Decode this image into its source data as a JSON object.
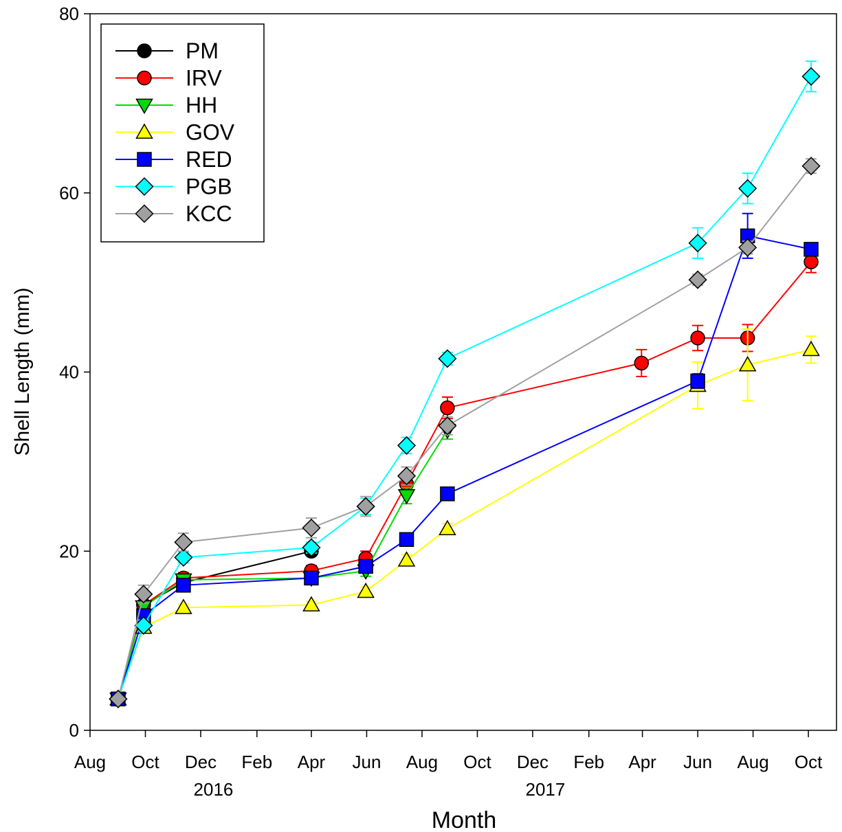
{
  "chart_data": {
    "type": "line",
    "title": "",
    "xlabel": "Month",
    "ylabel": "Shell Length (mm)",
    "x_unit": "month",
    "xlim": [
      "2015-08-01",
      "2017-11-01"
    ],
    "ylim": [
      0,
      80
    ],
    "y_ticks": [
      0,
      20,
      40,
      60,
      80
    ],
    "x_tick_dates": [
      "2015-08-01",
      "2015-10-01",
      "2015-12-01",
      "2016-02-01",
      "2016-04-01",
      "2016-06-01",
      "2016-08-01",
      "2016-10-01",
      "2016-12-01",
      "2017-02-01",
      "2017-04-01",
      "2017-06-01",
      "2017-08-01",
      "2017-10-01"
    ],
    "x_tick_labels": [
      "Aug",
      "Oct",
      "Dec",
      "Feb",
      "Apr",
      "Jun",
      "Aug",
      "Oct",
      "Dec",
      "Feb",
      "Apr",
      "Jun",
      "Aug",
      "Oct"
    ],
    "year_labels": [
      {
        "text": "2016",
        "date": "2015-12-15"
      },
      {
        "text": "2017",
        "date": "2016-12-15"
      }
    ],
    "grid": false,
    "legend_position": "top-left",
    "series": [
      {
        "name": "PM",
        "color": "#000000",
        "marker": "circle",
        "points": [
          {
            "x": "2015-09-01",
            "y": 3.5
          },
          {
            "x": "2015-09-29",
            "y": 14.0
          },
          {
            "x": "2015-11-12",
            "y": 16.5
          },
          {
            "x": "2016-04-01",
            "y": 20.0
          }
        ]
      },
      {
        "name": "IRV",
        "color": "#ff0000",
        "marker": "circle",
        "points": [
          {
            "x": "2015-09-01",
            "y": 3.5
          },
          {
            "x": "2015-09-29",
            "y": 14.0,
            "err": 0.8
          },
          {
            "x": "2015-11-12",
            "y": 17.0,
            "err": 0.6
          },
          {
            "x": "2016-04-01",
            "y": 17.8,
            "err": 0.6
          },
          {
            "x": "2016-05-31",
            "y": 19.2,
            "err": 0.8
          },
          {
            "x": "2016-07-15",
            "y": 27.5,
            "err": 1.0
          },
          {
            "x": "2016-08-29",
            "y": 36.0,
            "err": 1.2
          },
          {
            "x": "2017-03-31",
            "y": 41.0,
            "err": 1.5
          },
          {
            "x": "2017-06-01",
            "y": 43.8,
            "err": 1.4
          },
          {
            "x": "2017-07-26",
            "y": 43.8,
            "err": 1.5
          },
          {
            "x": "2017-10-04",
            "y": 52.3,
            "err": 1.2
          }
        ]
      },
      {
        "name": "HH",
        "color": "#00dd00",
        "marker": "triangle-down",
        "points": [
          {
            "x": "2015-09-01",
            "y": 3.5
          },
          {
            "x": "2015-09-29",
            "y": 13.8,
            "err": 0.6
          },
          {
            "x": "2015-11-12",
            "y": 16.8,
            "err": 0.6
          },
          {
            "x": "2016-04-01",
            "y": 17.0,
            "err": 0.5
          },
          {
            "x": "2016-05-31",
            "y": 17.8,
            "err": 0.6
          },
          {
            "x": "2016-07-15",
            "y": 26.2,
            "err": 0.9
          },
          {
            "x": "2016-08-29",
            "y": 33.5,
            "err": 1.0
          }
        ]
      },
      {
        "name": "GOV",
        "color": "#ffff00",
        "marker": "triangle-up",
        "points": [
          {
            "x": "2015-09-01",
            "y": 3.5
          },
          {
            "x": "2015-09-29",
            "y": 11.5,
            "err": 0.5
          },
          {
            "x": "2015-11-12",
            "y": 13.7,
            "err": 0.4
          },
          {
            "x": "2016-04-01",
            "y": 14.0,
            "err": 0.4
          },
          {
            "x": "2016-05-31",
            "y": 15.5,
            "err": 0.5
          },
          {
            "x": "2016-07-15",
            "y": 19.0,
            "err": 0.6
          },
          {
            "x": "2016-08-29",
            "y": 22.5,
            "err": 0.6
          },
          {
            "x": "2017-06-01",
            "y": 38.5,
            "err": 2.6
          },
          {
            "x": "2017-07-26",
            "y": 40.8,
            "err": 4.0
          },
          {
            "x": "2017-10-04",
            "y": 42.5,
            "err": 1.5
          }
        ]
      },
      {
        "name": "RED",
        "color": "#0000ff",
        "marker": "square",
        "points": [
          {
            "x": "2015-09-01",
            "y": 3.5
          },
          {
            "x": "2015-09-29",
            "y": 12.8,
            "err": 0.5
          },
          {
            "x": "2015-11-12",
            "y": 16.2,
            "err": 0.5
          },
          {
            "x": "2016-04-01",
            "y": 17.0,
            "err": 0.5
          },
          {
            "x": "2016-05-31",
            "y": 18.3,
            "err": 0.6
          },
          {
            "x": "2016-07-15",
            "y": 21.3,
            "err": 0.7
          },
          {
            "x": "2016-08-29",
            "y": 26.4,
            "err": 0.7
          },
          {
            "x": "2017-06-01",
            "y": 39.0,
            "err": 0.8
          },
          {
            "x": "2017-07-26",
            "y": 55.2,
            "err": 2.5
          },
          {
            "x": "2017-10-04",
            "y": 53.7,
            "err": 0.6
          }
        ]
      },
      {
        "name": "PGB",
        "color": "#00ffff",
        "marker": "diamond",
        "points": [
          {
            "x": "2015-09-01",
            "y": 3.5
          },
          {
            "x": "2015-09-29",
            "y": 11.7,
            "err": 0.6
          },
          {
            "x": "2015-11-12",
            "y": 19.3,
            "err": 0.6
          },
          {
            "x": "2016-04-01",
            "y": 20.4,
            "err": 0.6
          },
          {
            "x": "2016-05-31",
            "y": 25.0,
            "err": 0.9
          },
          {
            "x": "2016-07-15",
            "y": 31.8,
            "err": 0.9
          },
          {
            "x": "2016-08-29",
            "y": 41.5,
            "err": 0.7
          },
          {
            "x": "2017-06-01",
            "y": 54.4,
            "err": 1.7
          },
          {
            "x": "2017-07-26",
            "y": 60.5,
            "err": 1.7
          },
          {
            "x": "2017-10-04",
            "y": 73.0,
            "err": 1.7
          }
        ]
      },
      {
        "name": "KCC",
        "color": "#a0a0a0",
        "marker": "diamond",
        "points": [
          {
            "x": "2015-09-01",
            "y": 3.5
          },
          {
            "x": "2015-09-29",
            "y": 15.2,
            "err": 1.0
          },
          {
            "x": "2015-11-12",
            "y": 21.0,
            "err": 1.0
          },
          {
            "x": "2016-04-01",
            "y": 22.6,
            "err": 1.1
          },
          {
            "x": "2016-05-31",
            "y": 25.0,
            "err": 1.1
          },
          {
            "x": "2016-07-15",
            "y": 28.4,
            "err": 1.0
          },
          {
            "x": "2016-08-29",
            "y": 34.0,
            "err": 1.0
          },
          {
            "x": "2017-06-01",
            "y": 50.3,
            "err": 0.6
          },
          {
            "x": "2017-07-26",
            "y": 53.9,
            "err": 0.7
          },
          {
            "x": "2017-10-04",
            "y": 63.0,
            "err": 0.8
          }
        ]
      }
    ]
  }
}
